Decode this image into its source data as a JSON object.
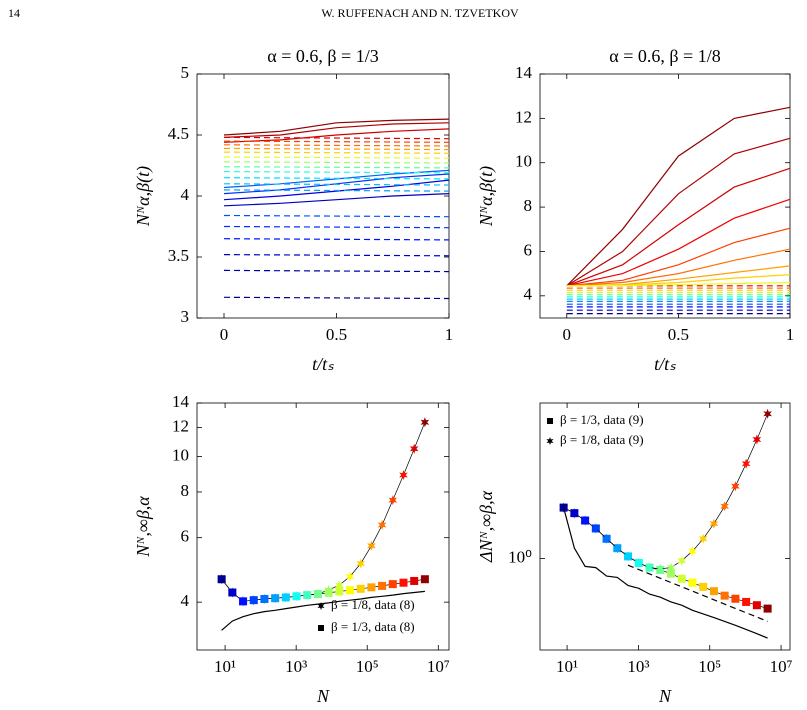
{
  "header": {
    "page": "14",
    "running_title": "W. RUFFENACH AND N. TZVETKOV"
  },
  "chart_data": [
    {
      "type": "line",
      "title": "α = 0.6,  β = 1/3",
      "xlabel": "t/tₛ",
      "ylabel": "Nᴺα,β(t)",
      "x": [
        0,
        0.25,
        0.5,
        0.75,
        1
      ],
      "xlim": [
        -0.12,
        1
      ],
      "ylim": [
        3,
        5
      ],
      "xticks": [
        0,
        0.5,
        1
      ],
      "yticks": [
        3,
        3.5,
        4,
        4.5,
        5
      ],
      "series": [
        {
          "color": "#8f0000",
          "values": [
            4.5,
            4.53,
            4.6,
            4.62,
            4.63
          ]
        },
        {
          "color": "#b00000",
          "values": [
            4.48,
            4.5,
            4.56,
            4.59,
            4.6
          ]
        },
        {
          "color": "#d00000",
          "values": [
            4.44,
            4.46,
            4.5,
            4.53,
            4.55
          ]
        },
        {
          "color": "#0000c0",
          "values": [
            3.92,
            3.94,
            3.97,
            4.0,
            4.02
          ]
        },
        {
          "color": "#0000e0",
          "values": [
            3.97,
            4.0,
            4.04,
            4.08,
            4.13
          ]
        },
        {
          "color": "#0030ff",
          "values": [
            4.02,
            4.05,
            4.1,
            4.15,
            4.18
          ]
        },
        {
          "color": "#0060ff",
          "values": [
            4.07,
            4.1,
            4.14,
            4.18,
            4.21
          ]
        },
        {
          "color": "#00008f",
          "dash": true,
          "x": [
            0,
            1
          ],
          "values": [
            3.17,
            3.16
          ]
        },
        {
          "color": "#0000a8",
          "dash": true,
          "x": [
            0,
            1
          ],
          "values": [
            3.39,
            3.38
          ]
        },
        {
          "color": "#0000c8",
          "dash": true,
          "x": [
            0,
            1
          ],
          "values": [
            3.52,
            3.51
          ]
        },
        {
          "color": "#0010ff",
          "dash": true,
          "x": [
            0,
            1
          ],
          "values": [
            3.65,
            3.64
          ]
        },
        {
          "color": "#0030ff",
          "dash": true,
          "x": [
            0,
            1
          ],
          "values": [
            3.75,
            3.74
          ]
        },
        {
          "color": "#0050ff",
          "dash": true,
          "x": [
            0,
            1
          ],
          "values": [
            3.84,
            3.83
          ]
        },
        {
          "color": "#00a0ff",
          "dash": true,
          "x": [
            0,
            1
          ],
          "values": [
            4.05,
            4.04
          ]
        },
        {
          "color": "#00c0ff",
          "dash": true,
          "x": [
            0,
            1
          ],
          "values": [
            4.1,
            4.09
          ]
        },
        {
          "color": "#00e0ff",
          "dash": true,
          "x": [
            0,
            1
          ],
          "values": [
            4.15,
            4.14
          ]
        },
        {
          "color": "#20ffdf",
          "dash": true,
          "x": [
            0,
            1
          ],
          "values": [
            4.2,
            4.19
          ]
        },
        {
          "color": "#60ff9f",
          "dash": true,
          "x": [
            0,
            1
          ],
          "values": [
            4.24,
            4.23
          ]
        },
        {
          "color": "#a0ff60",
          "dash": true,
          "x": [
            0,
            1
          ],
          "values": [
            4.28,
            4.27
          ]
        },
        {
          "color": "#e0ff20",
          "dash": true,
          "x": [
            0,
            1
          ],
          "values": [
            4.32,
            4.31
          ]
        },
        {
          "color": "#ffd000",
          "dash": true,
          "x": [
            0,
            1
          ],
          "values": [
            4.36,
            4.35
          ]
        },
        {
          "color": "#ffa000",
          "dash": true,
          "x": [
            0,
            1
          ],
          "values": [
            4.39,
            4.38
          ]
        },
        {
          "color": "#ff7000",
          "dash": true,
          "x": [
            0,
            1
          ],
          "values": [
            4.42,
            4.41
          ]
        },
        {
          "color": "#ff4000",
          "dash": true,
          "x": [
            0,
            1
          ],
          "values": [
            4.45,
            4.44
          ]
        },
        {
          "color": "#e00000",
          "dash": true,
          "x": [
            0,
            1
          ],
          "values": [
            4.48,
            4.47
          ]
        }
      ]
    },
    {
      "type": "line",
      "title": "α = 0.6,  β = 1/8",
      "xlabel": "t/tₛ",
      "ylabel": "Nᴺα,β(t)",
      "x": [
        0,
        0.25,
        0.5,
        0.75,
        1
      ],
      "xlim": [
        -0.12,
        1
      ],
      "ylim": [
        3,
        14
      ],
      "xticks": [
        0,
        0.5,
        1
      ],
      "yticks": [
        4,
        6,
        8,
        10,
        12,
        14
      ],
      "series": [
        {
          "color": "#00008f",
          "dash": true,
          "x": [
            0,
            1
          ],
          "values": [
            3.2,
            3.2
          ]
        },
        {
          "color": "#0000c8",
          "dash": true,
          "x": [
            0,
            1
          ],
          "values": [
            3.35,
            3.35
          ]
        },
        {
          "color": "#0010ff",
          "dash": true,
          "x": [
            0,
            1
          ],
          "values": [
            3.5,
            3.5
          ]
        },
        {
          "color": "#0050ff",
          "dash": true,
          "x": [
            0,
            1
          ],
          "values": [
            3.62,
            3.62
          ]
        },
        {
          "color": "#0090ff",
          "dash": true,
          "x": [
            0,
            1
          ],
          "values": [
            3.75,
            3.75
          ]
        },
        {
          "color": "#00d0ff",
          "dash": true,
          "x": [
            0,
            1
          ],
          "values": [
            3.85,
            3.85
          ]
        },
        {
          "color": "#20ffdf",
          "dash": true,
          "x": [
            0,
            1
          ],
          "values": [
            3.95,
            3.95
          ]
        },
        {
          "color": "#70ff8f",
          "dash": true,
          "x": [
            0,
            1
          ],
          "values": [
            4.05,
            4.05
          ]
        },
        {
          "color": "#c0ff40",
          "dash": true,
          "x": [
            0,
            1
          ],
          "values": [
            4.15,
            4.15
          ]
        },
        {
          "color": "#ffd000",
          "dash": true,
          "x": [
            0,
            1
          ],
          "values": [
            4.25,
            4.25
          ]
        },
        {
          "color": "#ff7000",
          "dash": true,
          "x": [
            0,
            1
          ],
          "values": [
            4.35,
            4.35
          ]
        },
        {
          "color": "#e00000",
          "dash": true,
          "x": [
            0,
            1
          ],
          "values": [
            4.45,
            4.45
          ]
        },
        {
          "color": "#8f0000",
          "values": [
            4.45,
            7.0,
            10.3,
            12.0,
            12.5
          ]
        },
        {
          "color": "#b00000",
          "values": [
            4.45,
            6.0,
            8.6,
            10.4,
            11.1
          ]
        },
        {
          "color": "#d00000",
          "values": [
            4.45,
            5.4,
            7.2,
            8.9,
            9.75
          ]
        },
        {
          "color": "#f00000",
          "values": [
            4.45,
            5.0,
            6.1,
            7.5,
            8.35
          ]
        },
        {
          "color": "#ff4000",
          "values": [
            4.45,
            4.7,
            5.4,
            6.4,
            7.05
          ]
        },
        {
          "color": "#ff7000",
          "values": [
            4.45,
            4.6,
            5.0,
            5.6,
            6.1
          ]
        },
        {
          "color": "#ffa000",
          "values": [
            4.45,
            4.5,
            4.75,
            5.05,
            5.35
          ]
        },
        {
          "color": "#ffd000",
          "values": [
            4.45,
            4.48,
            4.6,
            4.8,
            4.95
          ]
        },
        {
          "color": "#e0ff20",
          "values": [
            4.45,
            4.46,
            4.5,
            4.55,
            4.6
          ]
        }
      ]
    },
    {
      "type": "line",
      "xlabel": "N",
      "ylabel": "Nᴺ,∞β,α",
      "xscale": "log",
      "yscale": "log",
      "legend": "lower right",
      "x": [
        8,
        16,
        32,
        64,
        128,
        256,
        512,
        1024,
        2048,
        4096,
        8192,
        16384,
        32768,
        65536,
        131072,
        262144,
        524288,
        1048576,
        2097152,
        4194304
      ],
      "xlim": [
        1.62,
        20000000
      ],
      "ylim": [
        2.96,
        14
      ],
      "xticks": [
        {
          "value": 10,
          "label": "10¹"
        },
        {
          "value": 1000,
          "label": "10³"
        },
        {
          "value": 100000,
          "label": "10⁵"
        },
        {
          "value": 10000000,
          "label": "10⁷"
        }
      ],
      "yticks": [
        4,
        6,
        8,
        10,
        12,
        14
      ],
      "series": [
        {
          "color": "#000000",
          "values": [
            3.35,
            3.55,
            3.65,
            3.72,
            3.77,
            3.8,
            3.84,
            3.88,
            3.92,
            3.95,
            3.98,
            4.02,
            4.05,
            4.08,
            4.12,
            4.15,
            4.18,
            4.22,
            4.25,
            4.28
          ]
        },
        {
          "name": "β = 1/8, data (8)",
          "color": "#000000",
          "marker": "star",
          "colors": [
            "#00008f",
            "#0000c8",
            "#0010ff",
            "#0040ff",
            "#0070ff",
            "#00a0ff",
            "#00d0ff",
            "#10fff0",
            "#40ffbf",
            "#70ff8f",
            "#a0ff60",
            "#d0ff30",
            "#ffff00",
            "#ffd000",
            "#ffa000",
            "#ff7000",
            "#ff4000",
            "#ff1000",
            "#df0000",
            "#8f0000"
          ],
          "values": [
            4.62,
            4.25,
            4.02,
            4.05,
            4.08,
            4.1,
            4.12,
            4.15,
            4.18,
            4.21,
            4.32,
            4.45,
            4.7,
            5.1,
            5.7,
            6.5,
            7.6,
            8.9,
            10.5,
            12.4
          ]
        },
        {
          "name": "β = 1/3, data (8)",
          "color": "#000000",
          "marker": "square",
          "colors": [
            "#00008f",
            "#0000c8",
            "#0010ff",
            "#0040ff",
            "#0070ff",
            "#00a0ff",
            "#00d0ff",
            "#10fff0",
            "#40ffbf",
            "#70ff8f",
            "#a0ff60",
            "#d0ff30",
            "#ffff00",
            "#ffd000",
            "#ffa000",
            "#ff7000",
            "#ff4000",
            "#ff1000",
            "#df0000",
            "#8f0000"
          ],
          "values": [
            4.62,
            4.25,
            4.02,
            4.05,
            4.08,
            4.1,
            4.12,
            4.15,
            4.18,
            4.21,
            4.24,
            4.28,
            4.31,
            4.35,
            4.39,
            4.43,
            4.48,
            4.52,
            4.57,
            4.62
          ]
        }
      ]
    },
    {
      "type": "line",
      "xlabel": "N",
      "ylabel": "ΔNᴺ,∞β,α",
      "xscale": "log",
      "yscale": "log",
      "legend": "upper left",
      "x": [
        8,
        16,
        32,
        64,
        128,
        256,
        512,
        1024,
        2048,
        4096,
        8192,
        16384,
        32768,
        65536,
        131072,
        262144,
        524288,
        1048576,
        2097152,
        4194304
      ],
      "xlim": [
        1.74,
        17800000
      ],
      "ylim": [
        0.43,
        4.2
      ],
      "xticks": [
        {
          "value": 10,
          "label": "10¹"
        },
        {
          "value": 1000,
          "label": "10³"
        },
        {
          "value": 100000,
          "label": "10⁵"
        },
        {
          "value": 10000000,
          "label": "10⁷"
        }
      ],
      "yticks": [
        {
          "value": 1,
          "label": "10⁰"
        }
      ],
      "series": [
        {
          "color": "#000000",
          "values": [
            1.6,
            1.1,
            0.93,
            0.92,
            0.85,
            0.84,
            0.78,
            0.76,
            0.72,
            0.7,
            0.67,
            0.65,
            0.62,
            0.6,
            0.58,
            0.56,
            0.54,
            0.52,
            0.5,
            0.48
          ]
        },
        {
          "color": "#000000",
          "dash": true,
          "x": [
            512,
            4194304
          ],
          "values": [
            0.94,
            0.56
          ]
        },
        {
          "name": "β = 1/3, data (9)",
          "color": "#000000",
          "marker": "square",
          "colors": [
            "#00008f",
            "#0000c8",
            "#0010ff",
            "#0040ff",
            "#0070ff",
            "#00a0ff",
            "#00d0ff",
            "#10fff0",
            "#40ffbf",
            "#70ff8f",
            "#a0ff60",
            "#d0ff30",
            "#ffff00",
            "#ffd000",
            "#ffa000",
            "#ff7000",
            "#ff4000",
            "#ff1000",
            "#df0000",
            "#8f0000"
          ],
          "values": [
            1.6,
            1.52,
            1.42,
            1.32,
            1.2,
            1.1,
            1.02,
            0.96,
            0.92,
            0.9,
            0.87,
            0.83,
            0.8,
            0.77,
            0.74,
            0.71,
            0.69,
            0.67,
            0.65,
            0.63
          ]
        },
        {
          "name": "β = 1/8, data (9)",
          "color": "#000000",
          "marker": "star",
          "colors": [
            "#00008f",
            "#0000c8",
            "#0010ff",
            "#0040ff",
            "#0070ff",
            "#00a0ff",
            "#00d0ff",
            "#10fff0",
            "#40ffbf",
            "#70ff8f",
            "#a0ff60",
            "#d0ff30",
            "#ffff00",
            "#ffd000",
            "#ffa000",
            "#ff7000",
            "#ff4000",
            "#ff1000",
            "#df0000",
            "#8f0000"
          ],
          "values": [
            1.6,
            1.52,
            1.42,
            1.32,
            1.2,
            1.1,
            1.02,
            0.96,
            0.92,
            0.91,
            0.92,
            0.98,
            1.07,
            1.2,
            1.38,
            1.62,
            1.95,
            2.4,
            3.0,
            3.8
          ]
        }
      ]
    }
  ]
}
